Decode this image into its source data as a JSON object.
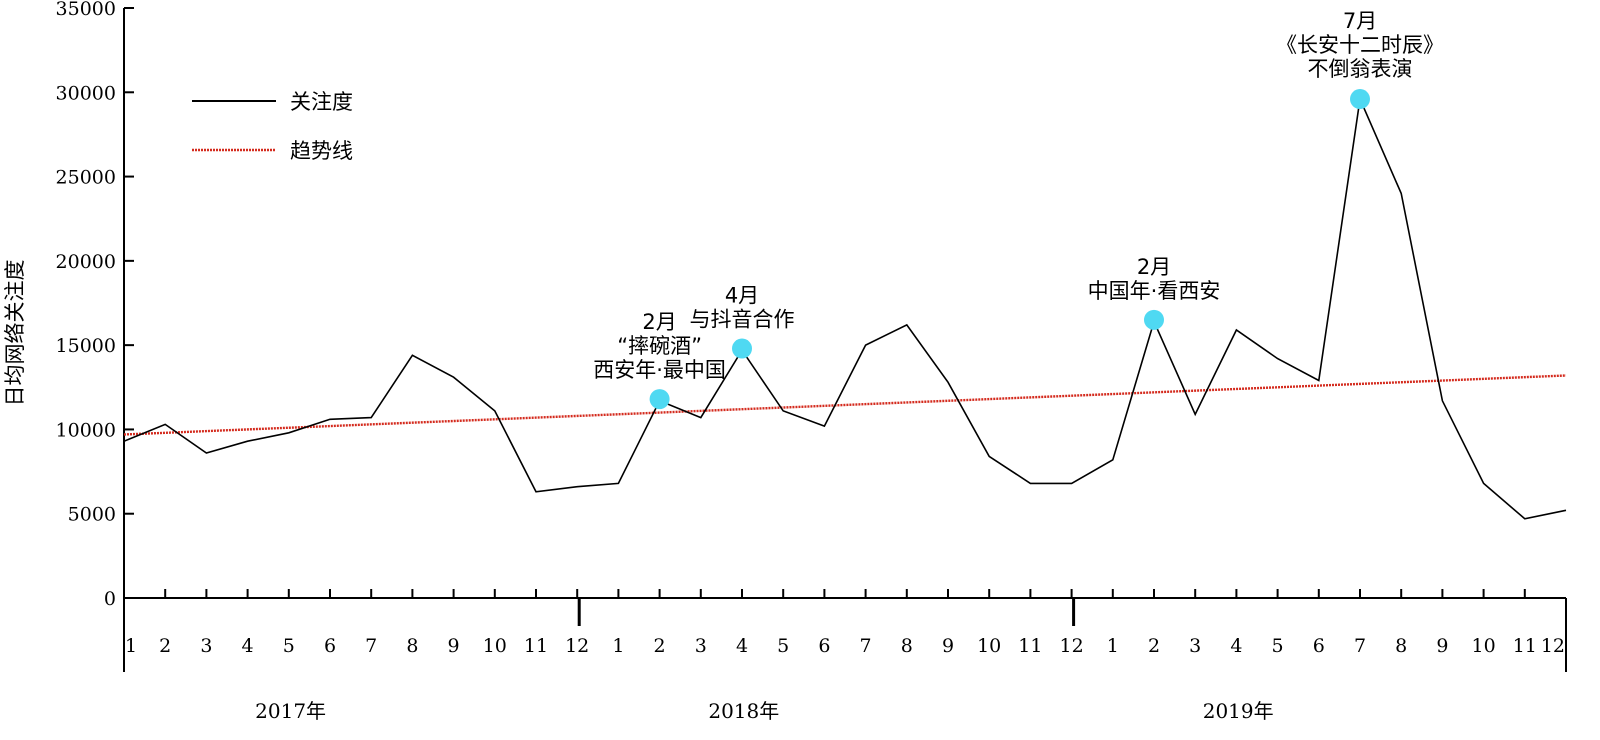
{
  "chart_data": {
    "type": "line",
    "ylabel": "日均网络关注度",
    "ylim": [
      0,
      35000
    ],
    "yticks": [
      "0",
      "5000",
      "10000",
      "15000",
      "20000",
      "25000",
      "30000",
      "35000"
    ],
    "x_month_labels": [
      "1",
      "2",
      "3",
      "4",
      "5",
      "6",
      "7",
      "8",
      "9",
      "10",
      "11",
      "12",
      "1",
      "2",
      "3",
      "4",
      "5",
      "6",
      "7",
      "8",
      "9",
      "10",
      "11",
      "12",
      "1",
      "2",
      "3",
      "4",
      "5",
      "6",
      "7",
      "8",
      "9",
      "10",
      "11",
      "12"
    ],
    "years": [
      "2017年",
      "2018年",
      "2019年"
    ],
    "series": [
      {
        "name": "关注度",
        "color": "#000000",
        "values": [
          9300,
          10300,
          8600,
          9300,
          9800,
          10600,
          10700,
          14400,
          13100,
          11100,
          6300,
          6600,
          6800,
          11700,
          10700,
          14700,
          11100,
          10200,
          15000,
          16200,
          12800,
          8400,
          6800,
          6800,
          8200,
          16400,
          10900,
          15900,
          14200,
          12900,
          29600,
          24000,
          11700,
          6800,
          4700,
          5200
        ]
      },
      {
        "name": "趋势线",
        "color": "#d42b1e",
        "style": "dotted",
        "start": 9700,
        "end": 13200
      }
    ],
    "annotations": [
      {
        "index": 13,
        "value": 11800,
        "lines": [
          "2月",
          "“摔碗酒”",
          "西安年·最中国"
        ]
      },
      {
        "index": 15,
        "value": 14800,
        "lines": [
          "4月",
          "与抖音合作"
        ]
      },
      {
        "index": 25,
        "value": 16500,
        "lines": [
          "2月",
          "中国年·看西安"
        ]
      },
      {
        "index": 30,
        "value": 29600,
        "lines": [
          "7月",
          "《长安十二时辰》",
          "不倒翁表演"
        ]
      }
    ],
    "marker_color": "#4fd9f2",
    "legend": {
      "position": "top-left",
      "entries": [
        "关注度",
        "趋势线"
      ]
    }
  }
}
